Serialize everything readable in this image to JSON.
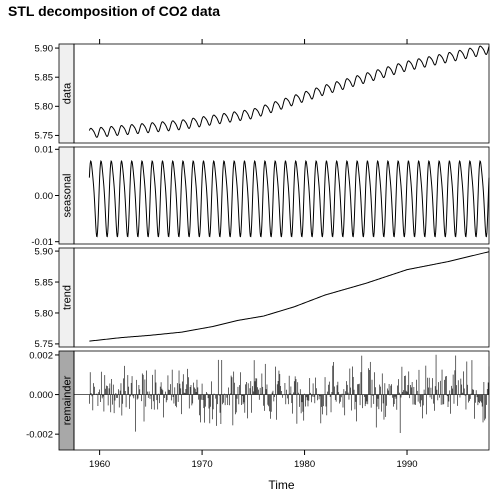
{
  "chart_data": {
    "type": "line",
    "title": "STL decomposition of CO2 data",
    "xlabel": "Time",
    "xlim": [
      1957.5,
      1998.0
    ],
    "x_ticks": [
      1960,
      1970,
      1980,
      1990
    ],
    "x_tick_labels": [
      "1960",
      "1970",
      "1980",
      "1990"
    ],
    "panels": [
      {
        "name": "data",
        "strip_label": "data",
        "strip_color": "#f0f0f0",
        "ylim": [
          5.737,
          5.907
        ],
        "y_ticks": [
          5.75,
          5.8,
          5.85,
          5.9
        ],
        "y_tick_labels": [
          "5.75",
          "5.80",
          "5.85",
          "5.90"
        ],
        "kind": "line",
        "series": {
          "start": 1959.0,
          "step": 0.0833333,
          "seasonal_amplitude": 0.0085,
          "trend_points": [
            [
              1959.0,
              5.7545
            ],
            [
              1968.0,
              5.769
            ],
            [
              1975.0,
              5.788
            ],
            [
              1982.0,
              5.829
            ],
            [
              1990.0,
              5.87
            ],
            [
              1998.0,
              5.899
            ]
          ]
        }
      },
      {
        "name": "seasonal",
        "strip_label": "seasonal",
        "strip_color": "#f0f0f0",
        "ylim": [
          -0.0105,
          0.0105
        ],
        "y_ticks": [
          -0.01,
          0.0,
          0.01
        ],
        "y_tick_labels": [
          "-0.01",
          "0.00",
          "0.01"
        ],
        "kind": "line",
        "series": {
          "start": 1959.0,
          "step": 0.0833333,
          "seasonal_amplitude": 0.0085,
          "cycles": 39
        }
      },
      {
        "name": "trend",
        "strip_label": "trend",
        "strip_color": "#f0f0f0",
        "ylim": [
          5.745,
          5.905
        ],
        "y_ticks": [
          5.75,
          5.8,
          5.85,
          5.9
        ],
        "y_tick_labels": [
          "5.75",
          "5.80",
          "5.85",
          "5.90"
        ],
        "kind": "line",
        "series": {
          "points": [
            [
              1959.0,
              5.7545
            ],
            [
              1962.0,
              5.76
            ],
            [
              1965.0,
              5.764
            ],
            [
              1968.0,
              5.769
            ],
            [
              1971.0,
              5.778
            ],
            [
              1973.5,
              5.788
            ],
            [
              1976.0,
              5.795
            ],
            [
              1979.0,
              5.81
            ],
            [
              1982.0,
              5.829
            ],
            [
              1986.0,
              5.848
            ],
            [
              1990.0,
              5.87
            ],
            [
              1994.0,
              5.883
            ],
            [
              1998.0,
              5.899
            ]
          ]
        }
      },
      {
        "name": "remainder",
        "strip_label": "remainder",
        "strip_color": "#a8a8a8",
        "ylim": [
          -0.0028,
          0.0022
        ],
        "y_ticks": [
          -0.002,
          0.0,
          0.002
        ],
        "y_tick_labels": [
          "-0.002",
          "0.000",
          "0.002"
        ],
        "kind": "bars",
        "series": {
          "start": 1959.0,
          "step": 0.0833333,
          "max_abs": 0.0024
        }
      }
    ],
    "grid": false,
    "legend": "none"
  }
}
